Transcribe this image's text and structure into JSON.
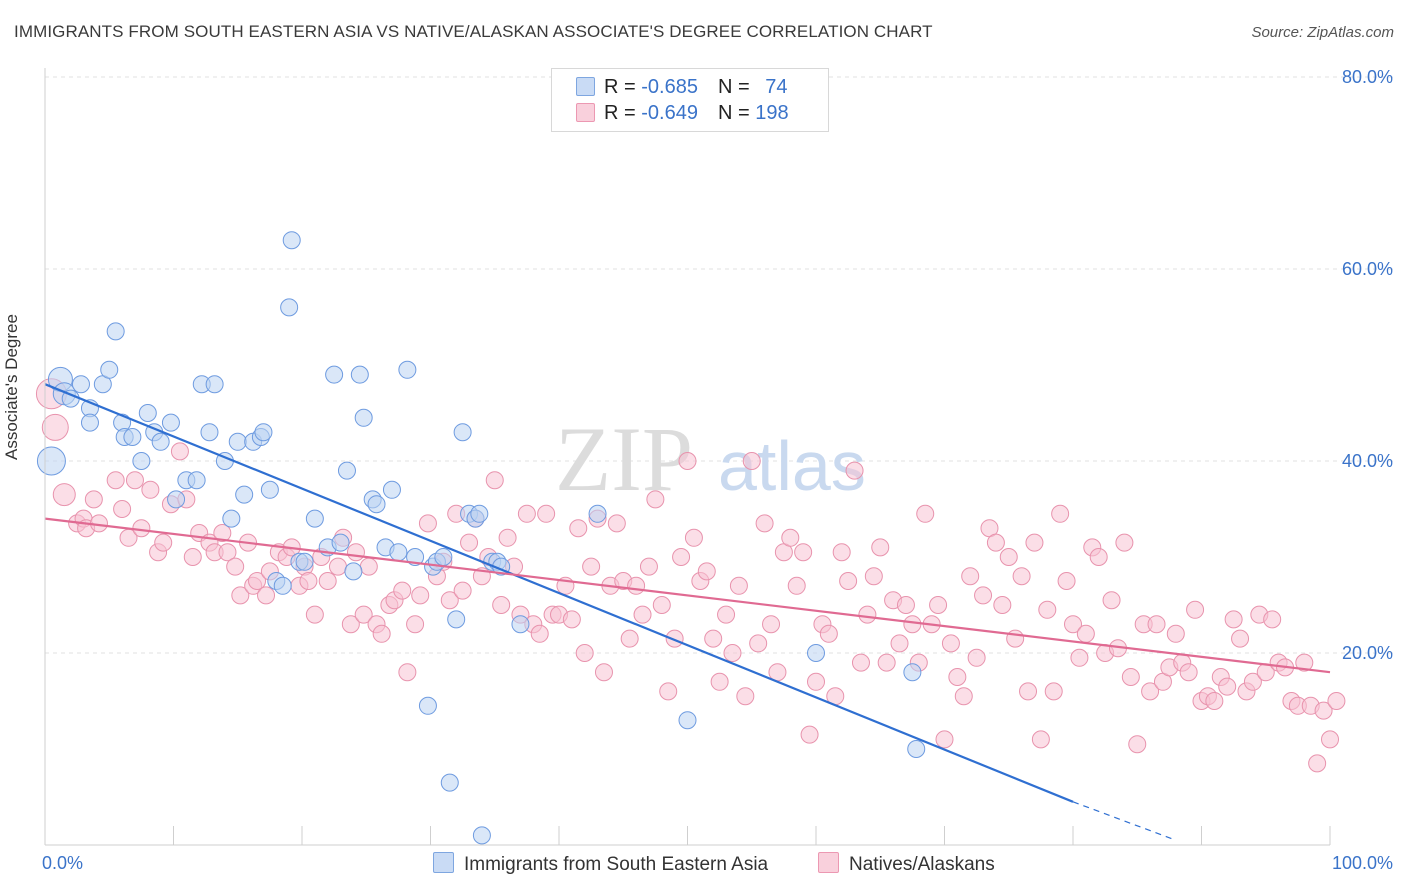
{
  "title": "IMMIGRANTS FROM SOUTH EASTERN ASIA VS NATIVE/ALASKAN ASSOCIATE'S DEGREE CORRELATION CHART",
  "source": "Source: ZipAtlas.com",
  "watermark": "ZIPatlas",
  "legend_top": [
    {
      "r_label": "R = ",
      "r_value": "-0.685",
      "n_label": "N = ",
      "n_value": "74",
      "color": "#a9c6ef"
    },
    {
      "r_label": "R = ",
      "r_value": "-0.649",
      "n_label": "N = ",
      "n_value": "198",
      "color": "#f4b3c7"
    }
  ],
  "colors": {
    "blue_fill": "#a9c6ef",
    "blue_line": "#2f6fd1",
    "pink_fill": "#f4b3c7",
    "pink_line": "#e06a92",
    "axis_text": "#3a73c9"
  },
  "chart_data": {
    "type": "scatter",
    "xlabel": "",
    "ylabel": "Associate's Degree",
    "x_tick_labels": [
      "0.0%",
      "100.0%"
    ],
    "y_tick_labels": [
      "20.0%",
      "40.0%",
      "60.0%",
      "80.0%"
    ],
    "xlim": [
      0,
      100
    ],
    "ylim": [
      0,
      81
    ],
    "grid": true,
    "legend_position": "bottom",
    "series": [
      {
        "name": "Immigrants from South Eastern Asia",
        "trend": {
          "x": [
            0,
            80
          ],
          "y": [
            48,
            4.5
          ],
          "dashed_extension_to": [
            88,
            0.5
          ]
        },
        "points": [
          [
            0.5,
            40
          ],
          [
            1.2,
            48.5
          ],
          [
            1.5,
            47
          ],
          [
            2,
            46.5
          ],
          [
            2.8,
            48
          ],
          [
            3.5,
            45.5
          ],
          [
            3.5,
            44
          ],
          [
            4.5,
            48
          ],
          [
            5,
            49.5
          ],
          [
            5.5,
            53.5
          ],
          [
            6,
            44
          ],
          [
            6.2,
            42.5
          ],
          [
            6.8,
            42.5
          ],
          [
            7.5,
            40
          ],
          [
            8,
            45
          ],
          [
            8.5,
            43
          ],
          [
            9,
            42
          ],
          [
            9.8,
            44
          ],
          [
            10.2,
            36
          ],
          [
            11,
            38
          ],
          [
            11.8,
            38
          ],
          [
            12.2,
            48
          ],
          [
            12.8,
            43
          ],
          [
            13.2,
            48
          ],
          [
            14,
            40
          ],
          [
            14.5,
            34
          ],
          [
            15,
            42
          ],
          [
            15.5,
            36.5
          ],
          [
            16.2,
            42
          ],
          [
            16.8,
            42.5
          ],
          [
            17,
            43
          ],
          [
            17.5,
            37
          ],
          [
            18,
            27.5
          ],
          [
            18.5,
            27
          ],
          [
            19,
            56
          ],
          [
            19.2,
            63
          ],
          [
            19.8,
            29.5
          ],
          [
            20.2,
            29.5
          ],
          [
            21,
            34
          ],
          [
            22,
            31
          ],
          [
            22.5,
            49
          ],
          [
            23,
            31.5
          ],
          [
            23.5,
            39
          ],
          [
            24,
            28.5
          ],
          [
            24.5,
            49
          ],
          [
            24.8,
            44.5
          ],
          [
            25.5,
            36
          ],
          [
            25.8,
            35.5
          ],
          [
            26.5,
            31
          ],
          [
            27,
            37
          ],
          [
            27.5,
            30.5
          ],
          [
            28.2,
            49.5
          ],
          [
            28.8,
            30
          ],
          [
            29.8,
            14.5
          ],
          [
            30.2,
            29
          ],
          [
            30.5,
            29.5
          ],
          [
            31,
            30
          ],
          [
            31.5,
            6.5
          ],
          [
            32,
            23.5
          ],
          [
            32.5,
            43
          ],
          [
            33,
            34.5
          ],
          [
            33.5,
            34
          ],
          [
            33.8,
            34.5
          ],
          [
            34,
            1
          ],
          [
            34.8,
            29.5
          ],
          [
            35.2,
            29.5
          ],
          [
            35.5,
            29
          ],
          [
            37,
            23
          ],
          [
            43,
            34.5
          ],
          [
            50,
            13
          ],
          [
            60,
            20
          ],
          [
            67.5,
            18
          ],
          [
            67.8,
            10
          ]
        ],
        "sizes": {
          "0.5,40": 14,
          "1.2,48.5": 12,
          "1.5,47": 11
        }
      },
      {
        "name": "Natives/Alaskans",
        "trend": {
          "x": [
            0,
            100
          ],
          "y": [
            34,
            18
          ]
        },
        "points": [
          [
            0.5,
            47
          ],
          [
            0.8,
            43.5
          ],
          [
            1.5,
            36.5
          ],
          [
            2.5,
            33.5
          ],
          [
            3,
            34
          ],
          [
            3.2,
            33
          ],
          [
            3.8,
            36
          ],
          [
            4.2,
            33.5
          ],
          [
            5.5,
            38
          ],
          [
            6,
            35
          ],
          [
            6.5,
            32
          ],
          [
            7,
            38
          ],
          [
            7.5,
            33
          ],
          [
            8.2,
            37
          ],
          [
            8.8,
            30.5
          ],
          [
            9.2,
            31.5
          ],
          [
            9.8,
            35.5
          ],
          [
            10.5,
            41
          ],
          [
            11,
            36
          ],
          [
            11.5,
            30
          ],
          [
            12,
            32.5
          ],
          [
            12.8,
            31.5
          ],
          [
            13.2,
            30.5
          ],
          [
            13.8,
            32.5
          ],
          [
            14.2,
            30.5
          ],
          [
            14.8,
            29
          ],
          [
            15.2,
            26
          ],
          [
            15.8,
            31.5
          ],
          [
            16.2,
            27
          ],
          [
            16.5,
            27.5
          ],
          [
            17.2,
            26
          ],
          [
            17.5,
            28.5
          ],
          [
            18.2,
            30.5
          ],
          [
            18.8,
            30
          ],
          [
            19.2,
            31
          ],
          [
            19.8,
            27
          ],
          [
            20.2,
            29
          ],
          [
            20.5,
            27.5
          ],
          [
            21,
            24
          ],
          [
            21.5,
            30
          ],
          [
            22,
            27.5
          ],
          [
            22.8,
            29
          ],
          [
            23.2,
            32
          ],
          [
            23.8,
            23
          ],
          [
            24.2,
            30.5
          ],
          [
            24.8,
            24
          ],
          [
            25.2,
            29
          ],
          [
            25.8,
            23
          ],
          [
            26.2,
            22
          ],
          [
            26.8,
            25
          ],
          [
            27.2,
            25.5
          ],
          [
            27.8,
            26.5
          ],
          [
            28.2,
            18
          ],
          [
            28.8,
            23
          ],
          [
            29.2,
            26
          ],
          [
            29.8,
            33.5
          ],
          [
            30.5,
            28
          ],
          [
            31,
            29.5
          ],
          [
            31.5,
            25.5
          ],
          [
            32,
            34.5
          ],
          [
            32.5,
            26.5
          ],
          [
            33,
            31.5
          ],
          [
            33.5,
            34
          ],
          [
            34,
            28
          ],
          [
            34.5,
            30
          ],
          [
            35,
            38
          ],
          [
            35.5,
            25
          ],
          [
            36,
            32
          ],
          [
            36.5,
            29
          ],
          [
            37,
            24
          ],
          [
            37.5,
            34.5
          ],
          [
            38,
            23
          ],
          [
            38.5,
            22
          ],
          [
            39,
            34.5
          ],
          [
            39.5,
            24
          ],
          [
            40,
            24
          ],
          [
            40.5,
            27
          ],
          [
            41,
            23.5
          ],
          [
            41.5,
            33
          ],
          [
            42,
            20
          ],
          [
            42.5,
            29
          ],
          [
            43,
            34
          ],
          [
            43.5,
            18
          ],
          [
            44,
            27
          ],
          [
            44.5,
            33.5
          ],
          [
            45,
            27.5
          ],
          [
            45.5,
            21.5
          ],
          [
            46,
            27
          ],
          [
            46.5,
            24
          ],
          [
            47,
            29
          ],
          [
            47.5,
            36
          ],
          [
            48,
            25
          ],
          [
            48.5,
            16
          ],
          [
            49,
            21.5
          ],
          [
            49.5,
            30
          ],
          [
            50,
            40
          ],
          [
            50.5,
            32
          ],
          [
            51,
            27.5
          ],
          [
            51.5,
            28.5
          ],
          [
            52,
            21.5
          ],
          [
            52.5,
            17
          ],
          [
            53,
            24
          ],
          [
            53.5,
            20
          ],
          [
            54,
            27
          ],
          [
            54.5,
            15.5
          ],
          [
            55,
            40
          ],
          [
            55.5,
            21
          ],
          [
            56,
            33.5
          ],
          [
            56.5,
            23
          ],
          [
            57,
            18
          ],
          [
            57.5,
            30.5
          ],
          [
            58,
            32
          ],
          [
            58.5,
            27
          ],
          [
            59,
            30.5
          ],
          [
            59.5,
            11.5
          ],
          [
            60,
            17
          ],
          [
            60.5,
            23
          ],
          [
            61,
            22
          ],
          [
            61.5,
            15.5
          ],
          [
            62,
            30.5
          ],
          [
            62.5,
            27.5
          ],
          [
            63,
            39
          ],
          [
            63.5,
            19
          ],
          [
            64,
            24
          ],
          [
            64.5,
            28
          ],
          [
            65,
            31
          ],
          [
            65.5,
            19
          ],
          [
            66,
            25.5
          ],
          [
            66.5,
            21
          ],
          [
            67,
            25
          ],
          [
            67.5,
            23
          ],
          [
            68,
            19
          ],
          [
            68.5,
            34.5
          ],
          [
            69,
            23
          ],
          [
            69.5,
            25
          ],
          [
            70,
            11
          ],
          [
            70.5,
            21
          ],
          [
            71,
            17.5
          ],
          [
            71.5,
            15.5
          ],
          [
            72,
            28
          ],
          [
            72.5,
            19.5
          ],
          [
            73,
            26
          ],
          [
            73.5,
            33
          ],
          [
            74,
            31.5
          ],
          [
            74.5,
            25
          ],
          [
            75,
            30
          ],
          [
            75.5,
            21.5
          ],
          [
            76,
            28
          ],
          [
            76.5,
            16
          ],
          [
            77,
            31.5
          ],
          [
            77.5,
            11
          ],
          [
            78,
            24.5
          ],
          [
            78.5,
            16
          ],
          [
            79,
            34.5
          ],
          [
            79.5,
            27.5
          ],
          [
            80,
            23
          ],
          [
            80.5,
            19.5
          ],
          [
            81,
            22
          ],
          [
            81.5,
            31
          ],
          [
            82,
            30
          ],
          [
            82.5,
            20
          ],
          [
            83,
            25.5
          ],
          [
            83.5,
            20.5
          ],
          [
            84,
            31.5
          ],
          [
            84.5,
            17.5
          ],
          [
            85,
            10.5
          ],
          [
            85.5,
            23
          ],
          [
            86,
            16
          ],
          [
            86.5,
            23
          ],
          [
            87,
            17
          ],
          [
            87.5,
            18.5
          ],
          [
            88,
            22
          ],
          [
            88.5,
            19
          ],
          [
            89,
            18
          ],
          [
            89.5,
            24.5
          ],
          [
            90,
            15
          ],
          [
            90.5,
            15.5
          ],
          [
            91,
            15
          ],
          [
            91.5,
            17.5
          ],
          [
            92,
            16.5
          ],
          [
            92.5,
            23.5
          ],
          [
            93,
            21.5
          ],
          [
            93.5,
            16
          ],
          [
            94,
            17
          ],
          [
            94.5,
            24
          ],
          [
            95,
            18
          ],
          [
            95.5,
            23.5
          ],
          [
            96,
            19
          ],
          [
            96.5,
            18.5
          ],
          [
            97,
            15
          ],
          [
            97.5,
            14.5
          ],
          [
            98,
            19
          ],
          [
            98.5,
            14.5
          ],
          [
            99,
            8.5
          ],
          [
            99.5,
            14
          ],
          [
            100,
            11
          ],
          [
            100.5,
            15
          ]
        ],
        "sizes": {
          "0.5,47": 15,
          "0.8,43.5": 13,
          "1.5,36.5": 11
        }
      }
    ]
  }
}
